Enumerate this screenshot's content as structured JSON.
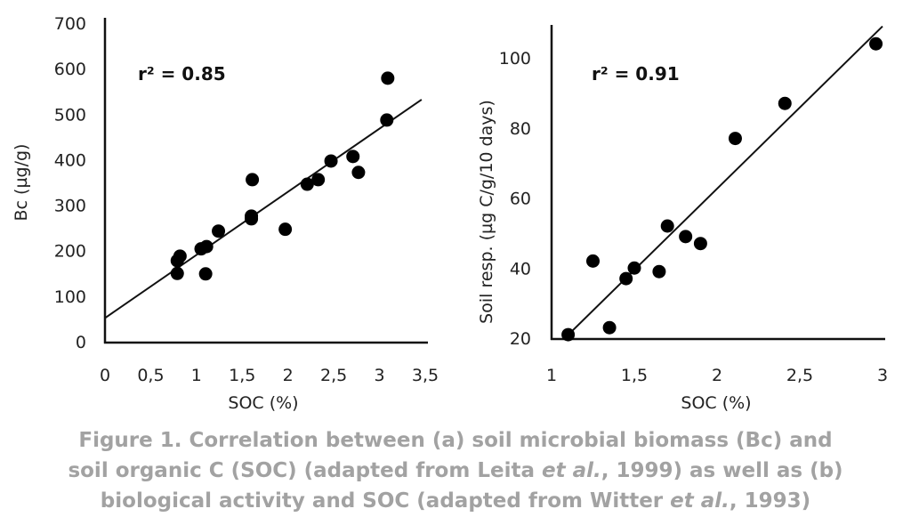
{
  "chart_data": [
    {
      "type": "scatter",
      "panel": "a",
      "xlabel": "SOC (%)",
      "ylabel": "Bc (µg/g)",
      "xlim": [
        0,
        3.5
      ],
      "ylim": [
        0,
        700
      ],
      "xticks": [
        "0",
        "0,5",
        "1",
        "1,5",
        "2",
        "2,5",
        "3",
        "3,5"
      ],
      "yticks": [
        "0",
        "100",
        "200",
        "300",
        "400",
        "500",
        "600",
        "700"
      ],
      "grid": false,
      "annotation": "r² = 0.85",
      "points": [
        [
          0.79,
          150
        ],
        [
          0.79,
          178
        ],
        [
          0.82,
          188
        ],
        [
          1.05,
          204
        ],
        [
          1.11,
          209
        ],
        [
          1.1,
          149
        ],
        [
          1.24,
          243
        ],
        [
          1.61,
          356
        ],
        [
          1.6,
          276
        ],
        [
          1.6,
          270
        ],
        [
          1.97,
          247
        ],
        [
          2.21,
          346
        ],
        [
          2.33,
          356
        ],
        [
          2.47,
          397
        ],
        [
          2.71,
          407
        ],
        [
          2.77,
          372
        ],
        [
          3.08,
          487
        ],
        [
          3.09,
          579
        ]
      ],
      "trendline": [
        [
          0,
          52
        ],
        [
          3.46,
          532
        ]
      ]
    },
    {
      "type": "scatter",
      "panel": "b",
      "xlabel": "SOC (%)",
      "ylabel": "Soil resp. (µg C/g/10 days)",
      "xlim": [
        1,
        3
      ],
      "ylim": [
        20,
        110
      ],
      "xticks": [
        "1",
        "1,5",
        "2",
        "2,5",
        "3"
      ],
      "yticks": [
        "20",
        "40",
        "60",
        "80",
        "100"
      ],
      "grid": false,
      "annotation": "r² = 0.91",
      "points": [
        [
          1.1,
          21
        ],
        [
          1.25,
          42
        ],
        [
          1.35,
          23
        ],
        [
          1.45,
          37
        ],
        [
          1.5,
          40
        ],
        [
          1.65,
          39
        ],
        [
          1.7,
          52
        ],
        [
          1.81,
          49
        ],
        [
          1.9,
          47
        ],
        [
          2.11,
          77
        ],
        [
          2.41,
          87
        ],
        [
          2.96,
          104
        ]
      ],
      "trendline": [
        [
          1.08,
          20
        ],
        [
          3.0,
          109
        ]
      ]
    }
  ],
  "caption": {
    "line1": "Figure 1. Correlation between (a) soil microbial biomass (Bc) and",
    "line2a": "soil organic C (SOC) (adapted from Leita ",
    "line2b": "et al.",
    "line2c": ", 1999) as well as (b)",
    "line3a": "biological activity and SOC (adapted from Witter ",
    "line3b": "et al.",
    "line3c": ", 1993)",
    "color": "#a2a2a2"
  }
}
